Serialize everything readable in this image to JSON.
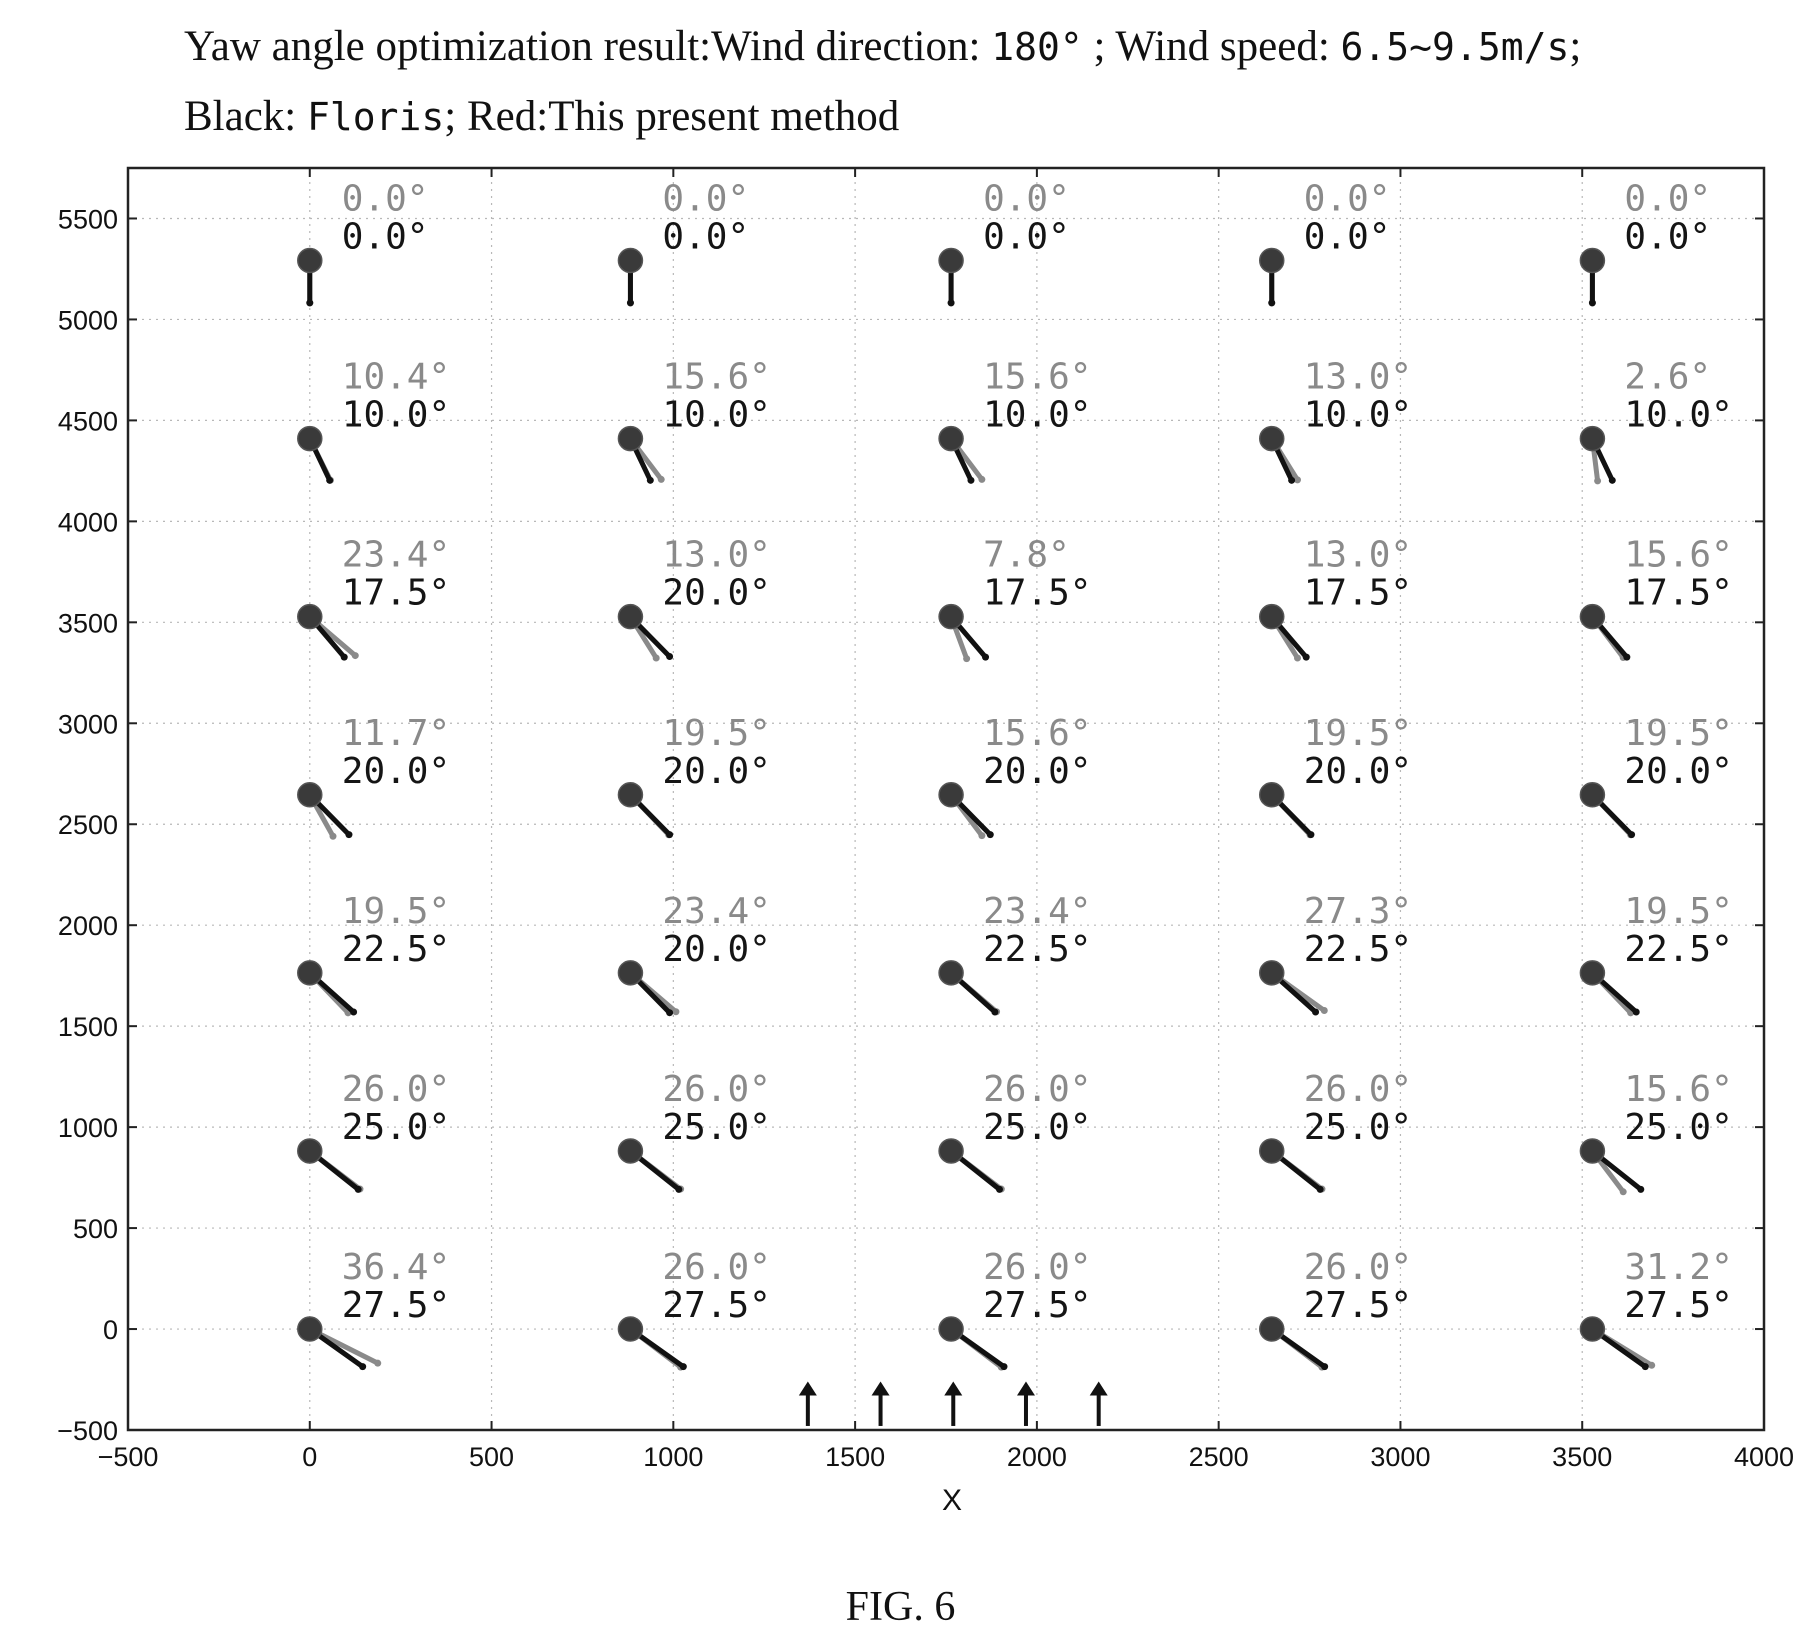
{
  "title": {
    "line1_prefix": "Yaw angle optimization result:Wind direction: ",
    "line1_direction": "180°",
    "line1_middle": " ; Wind speed: ",
    "line1_speed": "6.5~9.5m/s",
    "line1_suffix": ";",
    "line2_black_label": "Black: ",
    "line2_floris": "Floris",
    "line2_red_label": "; Red:This present method"
  },
  "caption": "FIG. 6",
  "chart_data": {
    "type": "scatter",
    "xlabel": "X",
    "ylabel": "",
    "xlim": [
      -500,
      4000
    ],
    "ylim": [
      -500,
      5750
    ],
    "xticks": [
      -500,
      0,
      500,
      1000,
      1500,
      2000,
      2500,
      3000,
      3500,
      4000
    ],
    "yticks": [
      -500,
      0,
      500,
      1000,
      1500,
      2000,
      2500,
      3000,
      3500,
      4000,
      4500,
      5000,
      5500
    ],
    "grid": true,
    "wind_direction_deg": 180,
    "wind_arrows_x": [
      1370,
      1570,
      1770,
      1970,
      2170
    ],
    "turbine_columns_x": [
      0,
      882,
      1764,
      2646,
      3528
    ],
    "turbine_rows_y": [
      5292,
      4410,
      3528,
      2646,
      1764,
      882,
      0
    ],
    "series": [
      {
        "name": "Floris",
        "color": "#111111",
        "yaw_deg": [
          [
            0.0,
            0.0,
            0.0,
            0.0,
            0.0
          ],
          [
            10.0,
            10.0,
            10.0,
            10.0,
            10.0
          ],
          [
            17.5,
            20.0,
            17.5,
            17.5,
            17.5
          ],
          [
            20.0,
            20.0,
            20.0,
            20.0,
            20.0
          ],
          [
            22.5,
            20.0,
            22.5,
            22.5,
            22.5
          ],
          [
            25.0,
            25.0,
            25.0,
            25.0,
            25.0
          ],
          [
            27.5,
            27.5,
            27.5,
            27.5,
            27.5
          ]
        ]
      },
      {
        "name": "This present method",
        "color": "#8a8a8a",
        "yaw_deg": [
          [
            0.0,
            0.0,
            0.0,
            0.0,
            0.0
          ],
          [
            10.4,
            15.6,
            15.6,
            13.0,
            2.6
          ],
          [
            23.4,
            13.0,
            7.8,
            13.0,
            15.6
          ],
          [
            11.7,
            19.5,
            15.6,
            19.5,
            19.5
          ],
          [
            19.5,
            23.4,
            23.4,
            27.3,
            19.5
          ],
          [
            26.0,
            26.0,
            26.0,
            26.0,
            15.6
          ],
          [
            36.4,
            26.0,
            26.0,
            26.0,
            31.2
          ]
        ]
      }
    ]
  }
}
